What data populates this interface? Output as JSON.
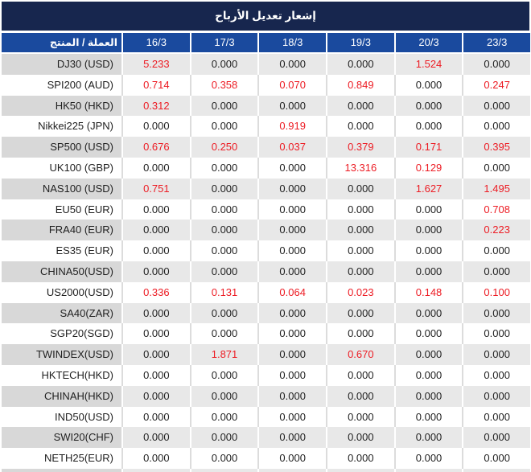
{
  "title": "إشعار تعديل الأرباح",
  "colors": {
    "title_bar_bg": "#17264E",
    "header_bg": "#1A4A9E",
    "nonzero_value_red": "#ED1C24",
    "zero_value_text": "#1F1F1F",
    "gray_row_name_bg": "#D8D8D8",
    "gray_row_value_bg": "#E8E8E8"
  },
  "chart_data": {
    "type": "table",
    "title": "إشعار تعديل الأرباح",
    "columns": [
      "العملة / المنتج",
      "16/3",
      "17/3",
      "18/3",
      "19/3",
      "20/3",
      "23/3"
    ],
    "value_format": "3-decimals",
    "nonzero_values_highlighted_red": true,
    "rows": [
      {
        "name": "DJ30 (USD)",
        "values": [
          5.233,
          0.0,
          0.0,
          0.0,
          1.524,
          0.0
        ]
      },
      {
        "name": "SPI200 (AUD)",
        "values": [
          0.714,
          0.358,
          0.07,
          0.849,
          0.0,
          0.247
        ]
      },
      {
        "name": "HK50 (HKD)",
        "values": [
          0.312,
          0.0,
          0.0,
          0.0,
          0.0,
          0.0
        ]
      },
      {
        "name": "Nikkei225 (JPN)",
        "values": [
          0.0,
          0.0,
          0.919,
          0.0,
          0.0,
          0.0
        ]
      },
      {
        "name": "SP500 (USD)",
        "values": [
          0.676,
          0.25,
          0.037,
          0.379,
          0.171,
          0.395
        ]
      },
      {
        "name": "UK100 (GBP)",
        "values": [
          0.0,
          0.0,
          0.0,
          13.316,
          0.129,
          0.0
        ]
      },
      {
        "name": "NAS100 (USD)",
        "values": [
          0.751,
          0.0,
          0.0,
          0.0,
          1.627,
          1.495
        ]
      },
      {
        "name": "EU50 (EUR)",
        "values": [
          0.0,
          0.0,
          0.0,
          0.0,
          0.0,
          0.708
        ]
      },
      {
        "name": "FRA40 (EUR)",
        "values": [
          0.0,
          0.0,
          0.0,
          0.0,
          0.0,
          0.223
        ]
      },
      {
        "name": "ES35 (EUR)",
        "values": [
          0.0,
          0.0,
          0.0,
          0.0,
          0.0,
          0.0
        ]
      },
      {
        "name": "CHINA50(USD)",
        "values": [
          0.0,
          0.0,
          0.0,
          0.0,
          0.0,
          0.0
        ]
      },
      {
        "name": "US2000(USD)",
        "values": [
          0.336,
          0.131,
          0.064,
          0.023,
          0.148,
          0.1
        ]
      },
      {
        "name": "SA40(ZAR)",
        "values": [
          0.0,
          0.0,
          0.0,
          0.0,
          0.0,
          0.0
        ]
      },
      {
        "name": "SGP20(SGD)",
        "values": [
          0.0,
          0.0,
          0.0,
          0.0,
          0.0,
          0.0
        ]
      },
      {
        "name": "TWINDEX(USD)",
        "values": [
          0.0,
          1.871,
          0.0,
          0.67,
          0.0,
          0.0
        ]
      },
      {
        "name": "HKTECH(HKD)",
        "values": [
          0.0,
          0.0,
          0.0,
          0.0,
          0.0,
          0.0
        ]
      },
      {
        "name": "CHINAH(HKD)",
        "values": [
          0.0,
          0.0,
          0.0,
          0.0,
          0.0,
          0.0
        ]
      },
      {
        "name": "IND50(USD)",
        "values": [
          0.0,
          0.0,
          0.0,
          0.0,
          0.0,
          0.0
        ]
      },
      {
        "name": "SWI20(CHF)",
        "values": [
          0.0,
          0.0,
          0.0,
          0.0,
          0.0,
          0.0
        ]
      },
      {
        "name": "NETH25(EUR)",
        "values": [
          0.0,
          0.0,
          0.0,
          0.0,
          0.0,
          0.0
        ]
      }
    ]
  }
}
